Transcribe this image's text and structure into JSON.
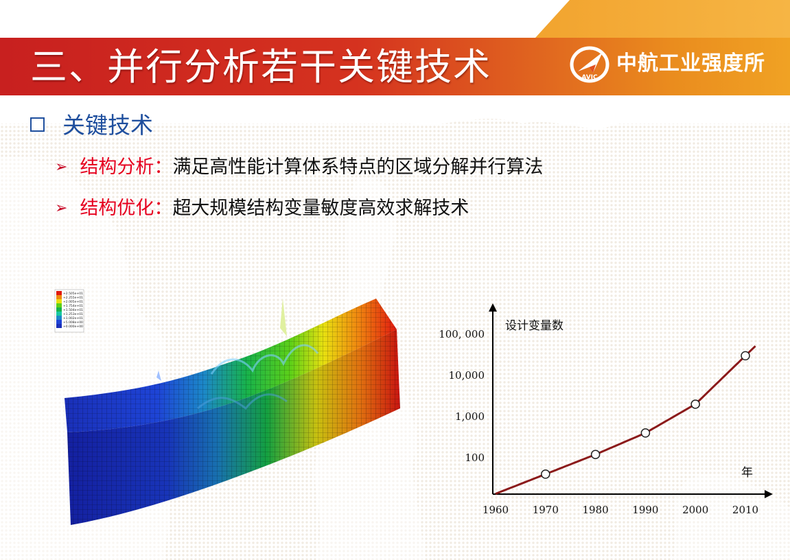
{
  "header": {
    "title": "三、并行分析若干关键技术",
    "logo_text": "中航工业强度所",
    "logo_badge": "AVIC"
  },
  "section": {
    "heading": "关键技术",
    "bullets": [
      {
        "key": "结构分析：",
        "desc": "满足高性能计算体系特点的区域分解并行算法"
      },
      {
        "key": "结构优化：",
        "desc": "超大规模结构变量敏度高效求解技术"
      }
    ]
  },
  "colors": {
    "title_red": "#c8201f",
    "title_orange": "#f0a224",
    "heading_blue": "#1f4f9e",
    "key_red": "#e6001f",
    "curve_red": "#8b1a1a"
  },
  "figure_fea": {
    "legend_values": [
      "+2.505e+01",
      "+2.255e+01",
      "+2.005e+01",
      "+1.754e+01",
      "+1.504e+01",
      "+1.253e+01",
      "+1.002e+01",
      "+5.008e+00",
      "+0.000e+00"
    ]
  },
  "chart_data": {
    "type": "line",
    "ylabel": "设计变量数",
    "xlabel": "年",
    "x_ticks": [
      "1960",
      "1970",
      "1980",
      "1990",
      "2000",
      "2010"
    ],
    "y_ticks": [
      "100",
      "1,000",
      "10,000",
      "100, 000"
    ],
    "yscale": "log",
    "series": [
      {
        "x": [
          1970,
          1980,
          1990,
          2000,
          2010
        ],
        "values": [
          40,
          120,
          400,
          2000,
          30000
        ]
      }
    ],
    "markers": "open-circle",
    "grid": false
  }
}
